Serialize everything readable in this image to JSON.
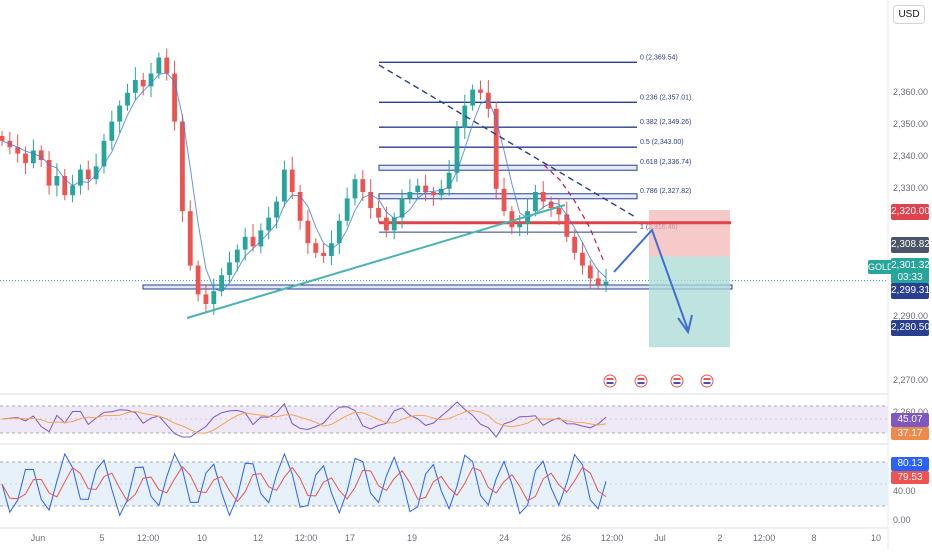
{
  "currency_button": "USD",
  "symbol_label": "GOLD",
  "price_scale_ticks": [
    {
      "price": 2360,
      "label": "2,360.00"
    },
    {
      "price": 2350,
      "label": "2,350.00"
    },
    {
      "price": 2340,
      "label": "2,340.00"
    },
    {
      "price": 2330,
      "label": "2,330.00"
    },
    {
      "price": 2290,
      "label": "2,290.00"
    },
    {
      "price": 2270,
      "label": "2,270.00"
    },
    {
      "price": 2260,
      "label": "2,260.00"
    }
  ],
  "price_labels": {
    "resistance": "2,320.00",
    "entry": "2,308.82",
    "last": "2,301.32",
    "countdown": "03:33",
    "support": "2,299.31",
    "target": "2,280.50"
  },
  "fib_levels": [
    {
      "label": "0 (2,369.54)",
      "price": 2369.54
    },
    {
      "label": "0.236 (2,357.01)",
      "price": 2357.01
    },
    {
      "label": "0.382 (2,349.26)",
      "price": 2349.26
    },
    {
      "label": "0.5 (2,343.00)",
      "price": 2343.0
    },
    {
      "label": "0.618 (2,336.74)",
      "price": 2336.74
    },
    {
      "label": "0.786 (2,327.82)",
      "price": 2327.82
    },
    {
      "label": "1 (2,316.46)",
      "price": 2316.46
    }
  ],
  "rsi": {
    "value": "45.07",
    "signal": "37.17"
  },
  "stoch": {
    "k": "80.13",
    "d": "79.53",
    "ticks": [
      "40.00",
      "0.00"
    ]
  },
  "x_axis": [
    "Jun",
    "5",
    "12:00",
    "10",
    "12",
    "12:00",
    "17",
    "19",
    "24",
    "26",
    "12:00",
    "Jul",
    "2",
    "12:00",
    "8",
    "10"
  ],
  "colors": {
    "up": "#26a69a",
    "down": "#ef5350",
    "fib": "#2a3f8f",
    "resistance": "#e0434d",
    "trend": "#4bb3b0",
    "arrow": "#3f6fd6",
    "zone_red": "#f2b8b6",
    "zone_green": "#a9dbd6",
    "rsi_line": "#7e57c2",
    "rsi_signal": "#f5a454"
  },
  "chart_data": {
    "type": "candlestick",
    "series": [
      {
        "name": "GOLD",
        "values": [
          2345,
          2343,
          2341,
          2338,
          2342,
          2339,
          2331,
          2334,
          2328,
          2331,
          2336,
          2333,
          2337,
          2345,
          2351,
          2356,
          2360,
          2364,
          2362,
          2366,
          2371,
          2366,
          2351,
          2323,
          2306,
          2297,
          2294,
          2298,
          2303,
          2307,
          2311,
          2315,
          2312,
          2317,
          2321,
          2326,
          2336,
          2329,
          2320,
          2313,
          2310,
          2309,
          2313,
          2320,
          2327,
          2333,
          2329,
          2324,
          2321,
          2317,
          2321,
          2327,
          2329,
          2331,
          2329,
          2328,
          2330,
          2335,
          2349,
          2356,
          2361,
          2360,
          2355,
          2330,
          2323,
          2318,
          2319,
          2323,
          2329,
          2326,
          2324,
          2322,
          2315,
          2310,
          2306,
          2302,
          2300,
          2301
        ]
      }
    ],
    "annotations": {
      "support": 2299.31,
      "resistance": 2320.0,
      "entry": 2308.82,
      "target": 2280.5,
      "last": 2301.32
    }
  }
}
